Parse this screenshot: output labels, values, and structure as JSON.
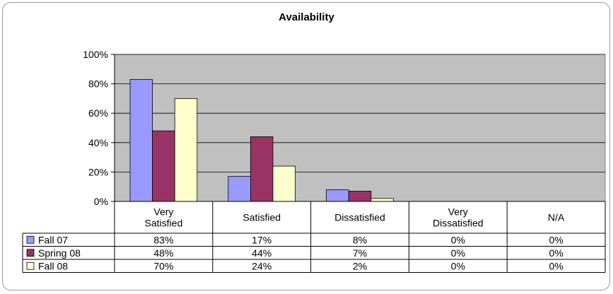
{
  "chart_data": {
    "type": "bar",
    "title": "Availability",
    "categories": [
      "Very Satisfied",
      "Satisfied",
      "Dissatisfied",
      "Very Dissatisfied",
      "N/A"
    ],
    "category_lines": [
      [
        "Very",
        "Satisfied"
      ],
      [
        "Satisfied"
      ],
      [
        "Dissatisfied"
      ],
      [
        "Very",
        "Dissatisfied"
      ],
      [
        "N/A"
      ]
    ],
    "series": [
      {
        "name": "Fall 07",
        "color": "#9999ff",
        "values": [
          83,
          17,
          8,
          0,
          0
        ],
        "labels": [
          "83%",
          "17%",
          "8%",
          "0%",
          "0%"
        ]
      },
      {
        "name": "Spring 08",
        "color": "#993366",
        "values": [
          48,
          44,
          7,
          0,
          0
        ],
        "labels": [
          "48%",
          "44%",
          "7%",
          "0%",
          "0%"
        ]
      },
      {
        "name": "Fall 08",
        "color": "#ffffcc",
        "values": [
          70,
          24,
          2,
          0,
          0
        ],
        "labels": [
          "70%",
          "24%",
          "2%",
          "0%",
          "0%"
        ]
      }
    ],
    "ylim": [
      0,
      100
    ],
    "yticks": [
      "0%",
      "20%",
      "40%",
      "60%",
      "80%",
      "100%"
    ],
    "plot_background": "#c0c0c0",
    "grid": true,
    "legend": "data-table"
  }
}
